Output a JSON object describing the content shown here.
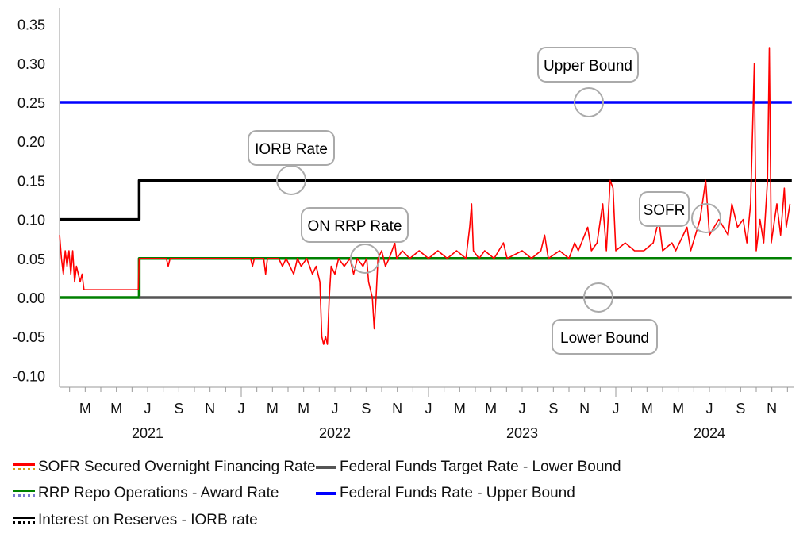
{
  "chart_data": {
    "type": "line",
    "title": "",
    "xlabel": "",
    "ylabel": "",
    "xlim": [
      2021.03,
      2024.94
    ],
    "ylim": [
      -0.12,
      0.36
    ],
    "yticks": [
      "0.35",
      "0.30",
      "0.25",
      "0.20",
      "0.15",
      "0.10",
      "0.05",
      "0.00",
      "-0.05",
      "-0.10"
    ],
    "ytick_values": [
      0.35,
      0.3,
      0.25,
      0.2,
      0.15,
      0.1,
      0.05,
      0.0,
      -0.05,
      -0.1
    ],
    "month_ticks": [
      {
        "t": 2021.167,
        "label": "M"
      },
      {
        "t": 2021.333,
        "label": "M"
      },
      {
        "t": 2021.5,
        "label": "J"
      },
      {
        "t": 2021.667,
        "label": "S"
      },
      {
        "t": 2021.833,
        "label": "N"
      },
      {
        "t": 2022.0,
        "label": "J"
      },
      {
        "t": 2022.167,
        "label": "M"
      },
      {
        "t": 2022.333,
        "label": "M"
      },
      {
        "t": 2022.5,
        "label": "J"
      },
      {
        "t": 2022.667,
        "label": "S"
      },
      {
        "t": 2022.833,
        "label": "N"
      },
      {
        "t": 2023.0,
        "label": "J"
      },
      {
        "t": 2023.167,
        "label": "M"
      },
      {
        "t": 2023.333,
        "label": "M"
      },
      {
        "t": 2023.5,
        "label": "J"
      },
      {
        "t": 2023.667,
        "label": "S"
      },
      {
        "t": 2023.833,
        "label": "N"
      },
      {
        "t": 2024.0,
        "label": "J"
      },
      {
        "t": 2024.167,
        "label": "M"
      },
      {
        "t": 2024.333,
        "label": "M"
      },
      {
        "t": 2024.5,
        "label": "J"
      },
      {
        "t": 2024.667,
        "label": "S"
      },
      {
        "t": 2024.833,
        "label": "N"
      }
    ],
    "year_labels": [
      {
        "t": 2021.5,
        "label": "2021"
      },
      {
        "t": 2022.5,
        "label": "2022"
      },
      {
        "t": 2023.5,
        "label": "2023"
      },
      {
        "t": 2024.5,
        "label": "2024"
      }
    ],
    "legend_position": "bottom",
    "series": [
      {
        "name": "Federal Funds Rate - Upper Bound",
        "color": "#0000ff",
        "step": true,
        "points": [
          [
            2021.03,
            0.25
          ],
          [
            2024.94,
            0.25
          ]
        ]
      },
      {
        "name": "Interest on Reserves - IORB rate",
        "color": "#000000",
        "step": true,
        "points": [
          [
            2021.03,
            0.1
          ],
          [
            2021.455,
            0.1
          ],
          [
            2021.455,
            0.15
          ],
          [
            2024.94,
            0.15
          ]
        ]
      },
      {
        "name": "RRP Repo Operations  - Award Rate",
        "color": "#008000",
        "step": true,
        "points": [
          [
            2021.03,
            0.0
          ],
          [
            2021.455,
            0.0
          ],
          [
            2021.455,
            0.05
          ],
          [
            2024.94,
            0.05
          ]
        ]
      },
      {
        "name": "Federal Funds Target Rate - Lower Bound",
        "color": "#555555",
        "step": true,
        "points": [
          [
            2021.455,
            0.0
          ],
          [
            2024.94,
            0.0
          ]
        ]
      },
      {
        "name": "SOFR Secured Overnight Financing Rate",
        "color": "#ff0000",
        "points": [
          [
            2021.03,
            0.08
          ],
          [
            2021.04,
            0.05
          ],
          [
            2021.05,
            0.03
          ],
          [
            2021.06,
            0.06
          ],
          [
            2021.07,
            0.04
          ],
          [
            2021.08,
            0.06
          ],
          [
            2021.09,
            0.03
          ],
          [
            2021.1,
            0.06
          ],
          [
            2021.11,
            0.02
          ],
          [
            2021.12,
            0.04
          ],
          [
            2021.13,
            0.03
          ],
          [
            2021.14,
            0.02
          ],
          [
            2021.15,
            0.03
          ],
          [
            2021.16,
            0.01
          ],
          [
            2021.45,
            0.01
          ],
          [
            2021.455,
            0.05
          ],
          [
            2021.6,
            0.05
          ],
          [
            2021.61,
            0.04
          ],
          [
            2021.62,
            0.05
          ],
          [
            2021.95,
            0.05
          ],
          [
            2022.05,
            0.05
          ],
          [
            2022.06,
            0.04
          ],
          [
            2022.07,
            0.05
          ],
          [
            2022.12,
            0.05
          ],
          [
            2022.13,
            0.03
          ],
          [
            2022.14,
            0.05
          ],
          [
            2022.2,
            0.05
          ],
          [
            2022.22,
            0.04
          ],
          [
            2022.24,
            0.05
          ],
          [
            2022.28,
            0.03
          ],
          [
            2022.3,
            0.05
          ],
          [
            2022.32,
            0.04
          ],
          [
            2022.35,
            0.05
          ],
          [
            2022.38,
            0.03
          ],
          [
            2022.4,
            0.04
          ],
          [
            2022.42,
            0.02
          ],
          [
            2022.43,
            -0.05
          ],
          [
            2022.44,
            -0.06
          ],
          [
            2022.45,
            -0.05
          ],
          [
            2022.46,
            -0.06
          ],
          [
            2022.47,
            0.0
          ],
          [
            2022.48,
            0.04
          ],
          [
            2022.5,
            0.03
          ],
          [
            2022.52,
            0.05
          ],
          [
            2022.55,
            0.04
          ],
          [
            2022.58,
            0.05
          ],
          [
            2022.6,
            0.03
          ],
          [
            2022.62,
            0.05
          ],
          [
            2022.65,
            0.04
          ],
          [
            2022.67,
            0.05
          ],
          [
            2022.68,
            0.02
          ],
          [
            2022.7,
            0.0
          ],
          [
            2022.71,
            -0.04
          ],
          [
            2022.72,
            0.0
          ],
          [
            2022.73,
            0.05
          ],
          [
            2022.75,
            0.06
          ],
          [
            2022.77,
            0.04
          ],
          [
            2022.79,
            0.05
          ],
          [
            2022.82,
            0.07
          ],
          [
            2022.83,
            0.05
          ],
          [
            2022.86,
            0.06
          ],
          [
            2022.9,
            0.05
          ],
          [
            2022.95,
            0.06
          ],
          [
            2023.0,
            0.05
          ],
          [
            2023.05,
            0.06
          ],
          [
            2023.1,
            0.05
          ],
          [
            2023.15,
            0.06
          ],
          [
            2023.2,
            0.05
          ],
          [
            2023.22,
            0.09
          ],
          [
            2023.23,
            0.12
          ],
          [
            2023.24,
            0.06
          ],
          [
            2023.27,
            0.05
          ],
          [
            2023.3,
            0.06
          ],
          [
            2023.35,
            0.05
          ],
          [
            2023.4,
            0.07
          ],
          [
            2023.42,
            0.05
          ],
          [
            2023.5,
            0.06
          ],
          [
            2023.55,
            0.05
          ],
          [
            2023.6,
            0.06
          ],
          [
            2023.62,
            0.08
          ],
          [
            2023.64,
            0.05
          ],
          [
            2023.7,
            0.06
          ],
          [
            2023.75,
            0.05
          ],
          [
            2023.78,
            0.07
          ],
          [
            2023.8,
            0.06
          ],
          [
            2023.85,
            0.09
          ],
          [
            2023.87,
            0.06
          ],
          [
            2023.9,
            0.07
          ],
          [
            2023.93,
            0.12
          ],
          [
            2023.95,
            0.06
          ],
          [
            2023.97,
            0.15
          ],
          [
            2023.985,
            0.14
          ],
          [
            2024.0,
            0.06
          ],
          [
            2024.05,
            0.07
          ],
          [
            2024.1,
            0.06
          ],
          [
            2024.15,
            0.06
          ],
          [
            2024.2,
            0.07
          ],
          [
            2024.23,
            0.1
          ],
          [
            2024.25,
            0.06
          ],
          [
            2024.3,
            0.07
          ],
          [
            2024.32,
            0.06
          ],
          [
            2024.38,
            0.09
          ],
          [
            2024.4,
            0.06
          ],
          [
            2024.45,
            0.1
          ],
          [
            2024.48,
            0.15
          ],
          [
            2024.5,
            0.08
          ],
          [
            2024.55,
            0.1
          ],
          [
            2024.6,
            0.08
          ],
          [
            2024.62,
            0.12
          ],
          [
            2024.65,
            0.09
          ],
          [
            2024.68,
            0.1
          ],
          [
            2024.7,
            0.07
          ],
          [
            2024.72,
            0.12
          ],
          [
            2024.74,
            0.3
          ],
          [
            2024.75,
            0.06
          ],
          [
            2024.77,
            0.1
          ],
          [
            2024.79,
            0.07
          ],
          [
            2024.81,
            0.15
          ],
          [
            2024.82,
            0.32
          ],
          [
            2024.83,
            0.07
          ],
          [
            2024.86,
            0.12
          ],
          [
            2024.88,
            0.08
          ],
          [
            2024.9,
            0.14
          ],
          [
            2024.91,
            0.09
          ],
          [
            2024.93,
            0.12
          ]
        ]
      }
    ],
    "annotations": [
      "Upper Bound",
      "IORB Rate",
      "ON RRP Rate",
      "SOFR",
      "Lower Bound"
    ]
  },
  "legend": [
    {
      "label": "SOFR Secured Overnight Financing Rate",
      "color": "#ff0000",
      "dot_color": "#d4a017"
    },
    {
      "label": "Federal Funds Target Rate - Lower Bound",
      "color": "#555555"
    },
    {
      "label": "RRP Repo Operations  - Award Rate",
      "color": "#008000",
      "dot_color": "#7b7bd0"
    },
    {
      "label": "Federal Funds Rate - Upper Bound",
      "color": "#0000ff"
    },
    {
      "label": "Interest on Reserves - IORB rate",
      "color": "#000000",
      "dot_color": "#000000"
    }
  ]
}
